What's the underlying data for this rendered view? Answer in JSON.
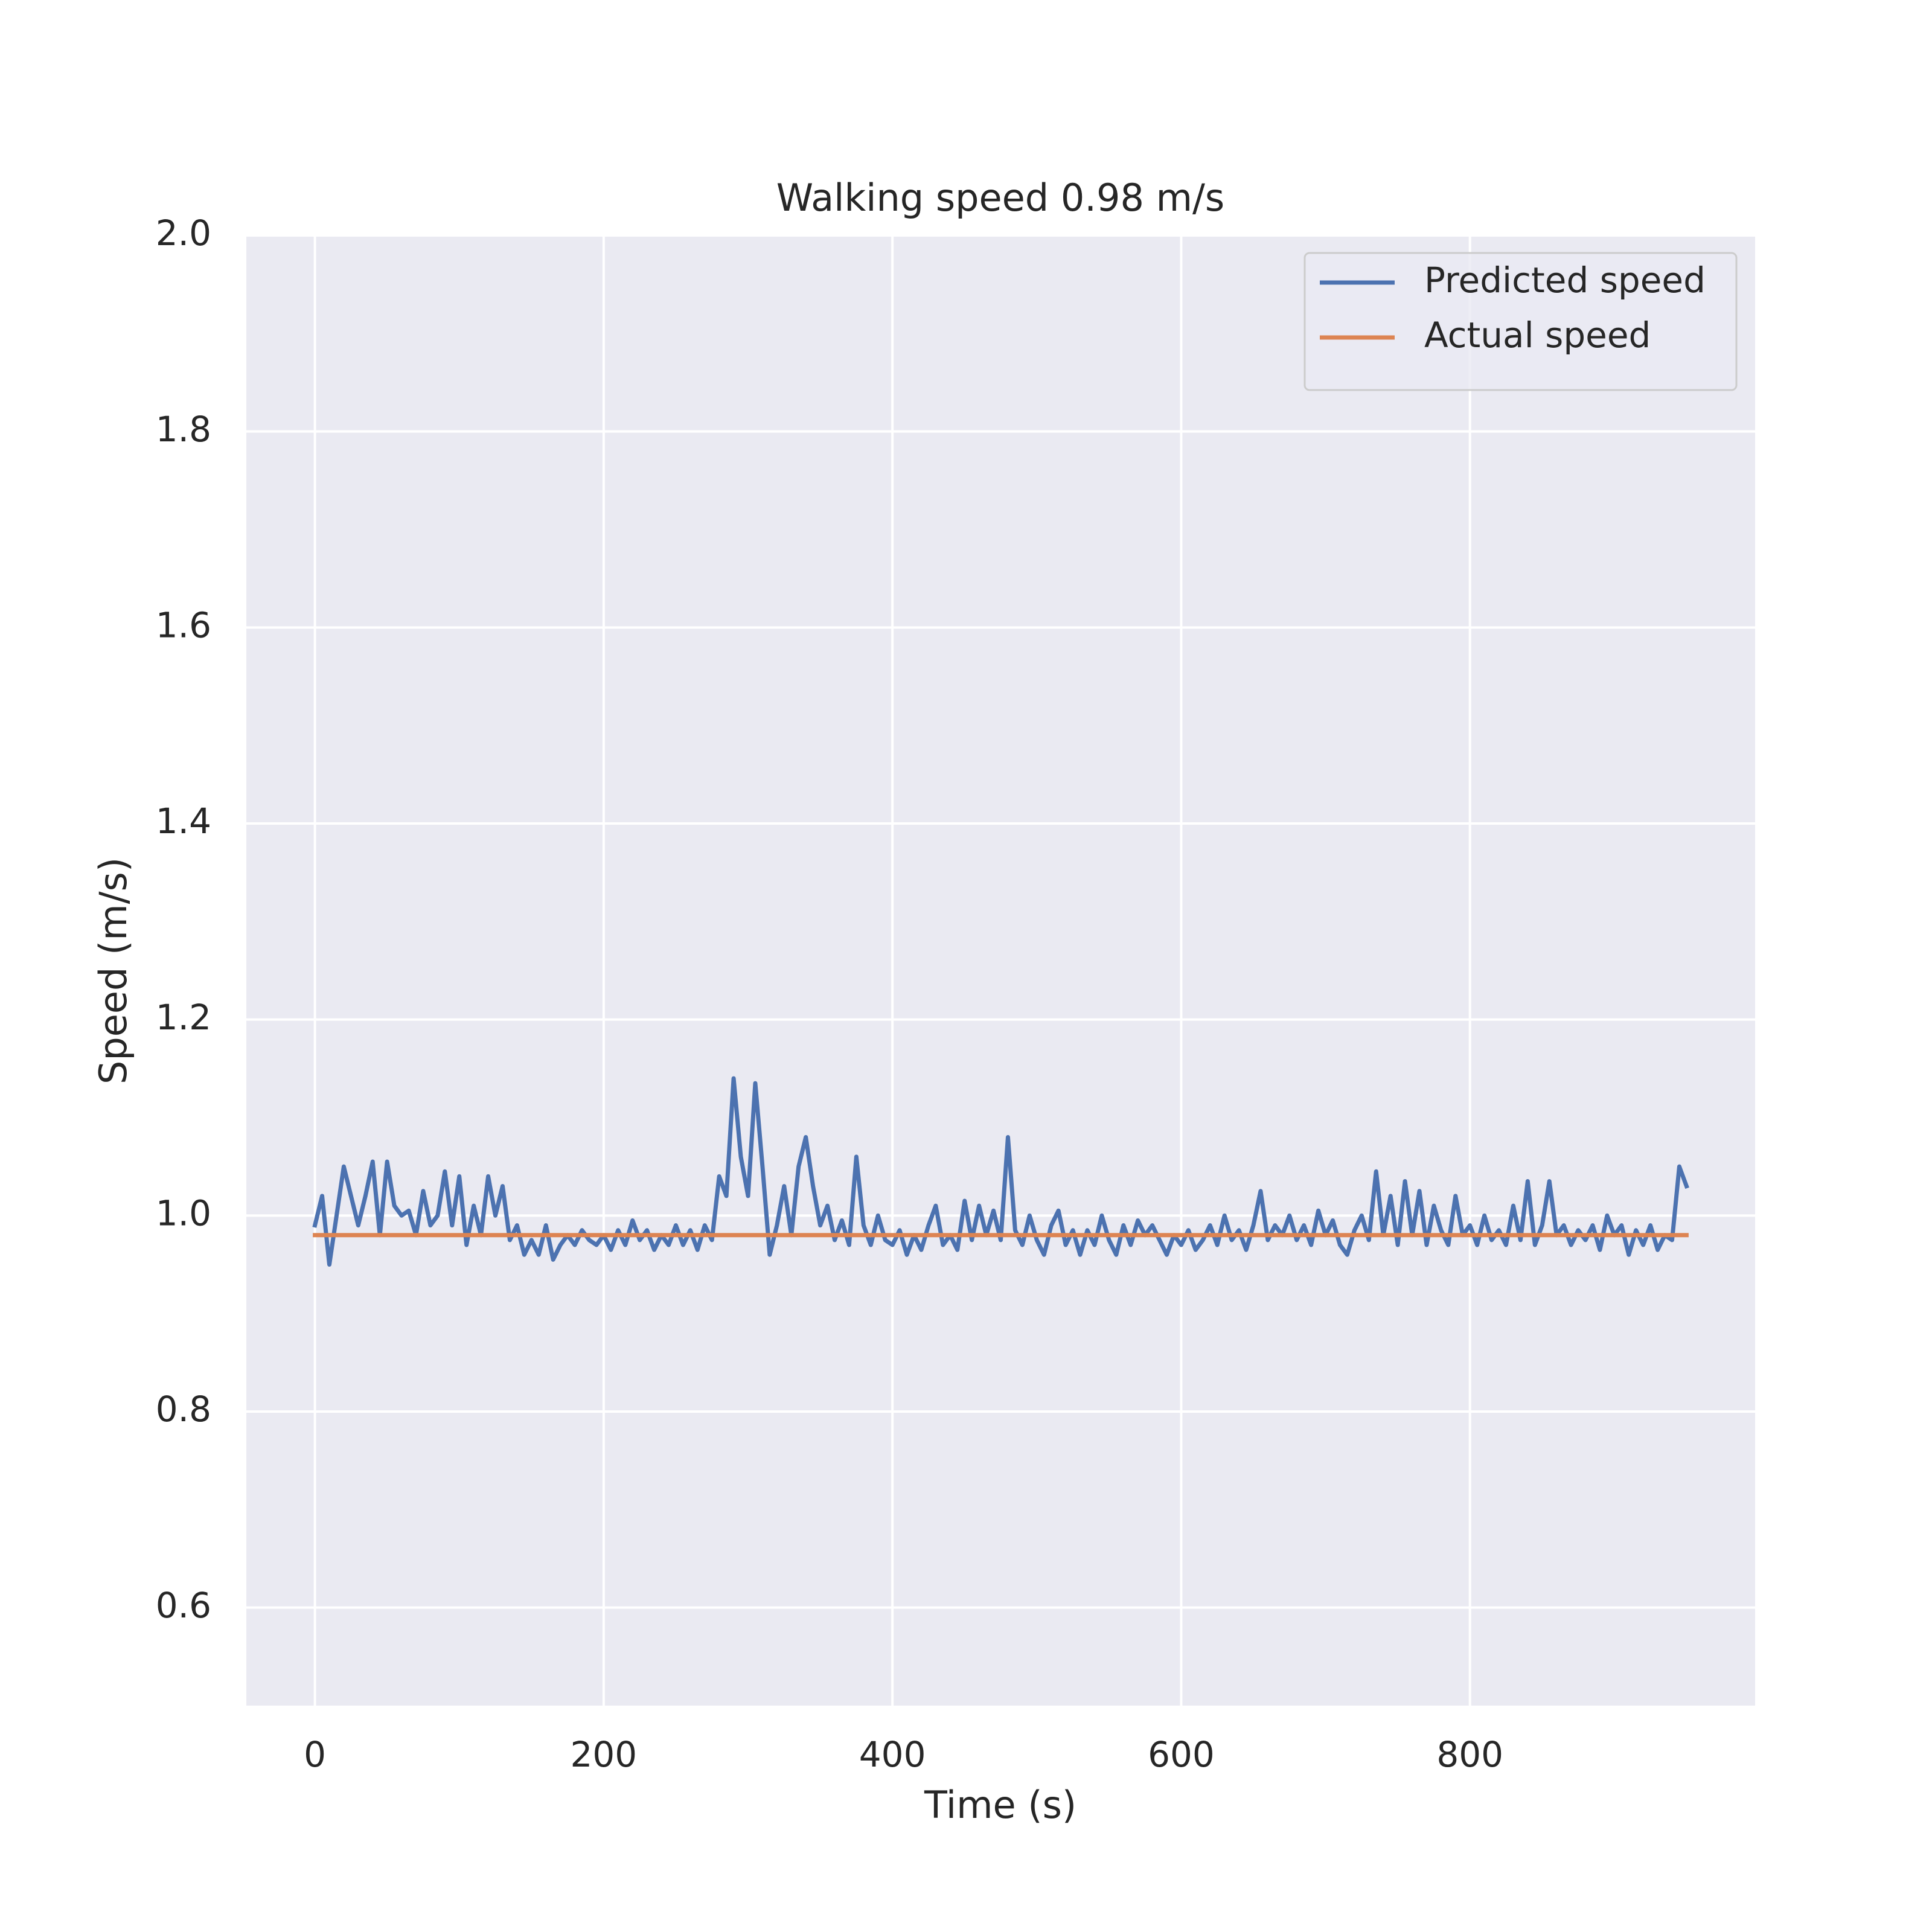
{
  "chart_data": {
    "type": "line",
    "title": "Walking speed 0.98 m/s",
    "xlabel": "Time (s)",
    "ylabel": "Speed (m/s)",
    "series": [
      {
        "name": "Predicted speed",
        "color": "#4c72b0",
        "x": [
          0,
          5,
          10,
          15,
          20,
          25,
          30,
          35,
          40,
          45,
          50,
          55,
          60,
          65,
          70,
          75,
          80,
          85,
          90,
          95,
          100,
          105,
          110,
          115,
          120,
          125,
          130,
          135,
          140,
          145,
          150,
          155,
          160,
          165,
          170,
          175,
          180,
          185,
          190,
          195,
          200,
          205,
          210,
          215,
          220,
          225,
          230,
          235,
          240,
          245,
          250,
          255,
          260,
          265,
          270,
          275,
          280,
          285,
          290,
          295,
          300,
          305,
          310,
          315,
          320,
          325,
          330,
          335,
          340,
          345,
          350,
          355,
          360,
          365,
          370,
          375,
          380,
          385,
          390,
          395,
          400,
          405,
          410,
          415,
          420,
          425,
          430,
          435,
          440,
          445,
          450,
          455,
          460,
          465,
          470,
          475,
          480,
          485,
          490,
          495,
          500,
          505,
          510,
          515,
          520,
          525,
          530,
          535,
          540,
          545,
          550,
          555,
          560,
          565,
          570,
          575,
          580,
          585,
          590,
          595,
          600,
          605,
          610,
          615,
          620,
          625,
          630,
          635,
          640,
          645,
          650,
          655,
          660,
          665,
          670,
          675,
          680,
          685,
          690,
          695,
          700,
          705,
          710,
          715,
          720,
          725,
          730,
          735,
          740,
          745,
          750,
          755,
          760,
          765,
          770,
          775,
          780,
          785,
          790,
          795,
          800,
          805,
          810,
          815,
          820,
          825,
          830,
          835,
          840,
          845,
          850,
          855,
          860,
          865,
          870,
          875,
          880,
          885,
          890,
          895,
          900,
          905,
          910,
          915,
          920,
          925,
          930,
          935,
          940,
          945,
          950
        ],
        "values": [
          0.99,
          1.02,
          0.95,
          1.0,
          1.05,
          1.02,
          0.99,
          1.02,
          1.055,
          0.98,
          1.055,
          1.01,
          1.0,
          1.005,
          0.98,
          1.025,
          0.99,
          1.0,
          1.045,
          0.99,
          1.04,
          0.97,
          1.01,
          0.98,
          1.04,
          1.0,
          1.03,
          0.975,
          0.99,
          0.96,
          0.975,
          0.96,
          0.99,
          0.955,
          0.97,
          0.98,
          0.97,
          0.985,
          0.975,
          0.97,
          0.98,
          0.965,
          0.985,
          0.97,
          0.995,
          0.975,
          0.985,
          0.965,
          0.98,
          0.97,
          0.99,
          0.97,
          0.985,
          0.965,
          0.99,
          0.975,
          1.04,
          1.02,
          1.14,
          1.06,
          1.02,
          1.135,
          1.05,
          0.96,
          0.99,
          1.03,
          0.98,
          1.05,
          1.08,
          1.03,
          0.99,
          1.01,
          0.975,
          0.995,
          0.97,
          1.06,
          0.99,
          0.97,
          1.0,
          0.975,
          0.97,
          0.985,
          0.96,
          0.98,
          0.965,
          0.99,
          1.01,
          0.97,
          0.98,
          0.965,
          1.015,
          0.975,
          1.01,
          0.98,
          1.005,
          0.975,
          1.08,
          0.985,
          0.97,
          1.0,
          0.975,
          0.96,
          0.99,
          1.005,
          0.97,
          0.985,
          0.96,
          0.985,
          0.97,
          1.0,
          0.975,
          0.96,
          0.99,
          0.97,
          0.995,
          0.98,
          0.99,
          0.975,
          0.96,
          0.98,
          0.97,
          0.985,
          0.965,
          0.975,
          0.99,
          0.97,
          1.0,
          0.975,
          0.985,
          0.965,
          0.99,
          1.025,
          0.975,
          0.99,
          0.98,
          1.0,
          0.975,
          0.99,
          0.97,
          1.005,
          0.98,
          0.995,
          0.97,
          0.96,
          0.985,
          1.0,
          0.975,
          1.045,
          0.98,
          1.02,
          0.97,
          1.035,
          0.98,
          1.025,
          0.97,
          1.01,
          0.985,
          0.97,
          1.02,
          0.98,
          0.99,
          0.97,
          1.0,
          0.975,
          0.985,
          0.97,
          1.01,
          0.975,
          1.035,
          0.97,
          0.99,
          1.035,
          0.98,
          0.99,
          0.97,
          0.985,
          0.975,
          0.99,
          0.965,
          1.0,
          0.98,
          0.99,
          0.96,
          0.985,
          0.97,
          0.99,
          0.965,
          0.98,
          0.975,
          1.05,
          1.03
        ]
      },
      {
        "name": "Actual speed",
        "color": "#dd8452",
        "x": [
          0,
          950
        ],
        "values": [
          0.98,
          0.98
        ]
      }
    ],
    "xlim": [
      -47.5,
      997.5
    ],
    "xticks": [
      0,
      200,
      400,
      600,
      800
    ],
    "ylim": [
      0.5,
      2.0
    ],
    "yticks": [
      0.6,
      0.8,
      {
        "value": 1,
        "label": "1.0"
      },
      1.2,
      1.4,
      1.6,
      1.8,
      {
        "value": 2,
        "label": "2.0"
      }
    ],
    "grid": true,
    "legend": "upper right"
  }
}
